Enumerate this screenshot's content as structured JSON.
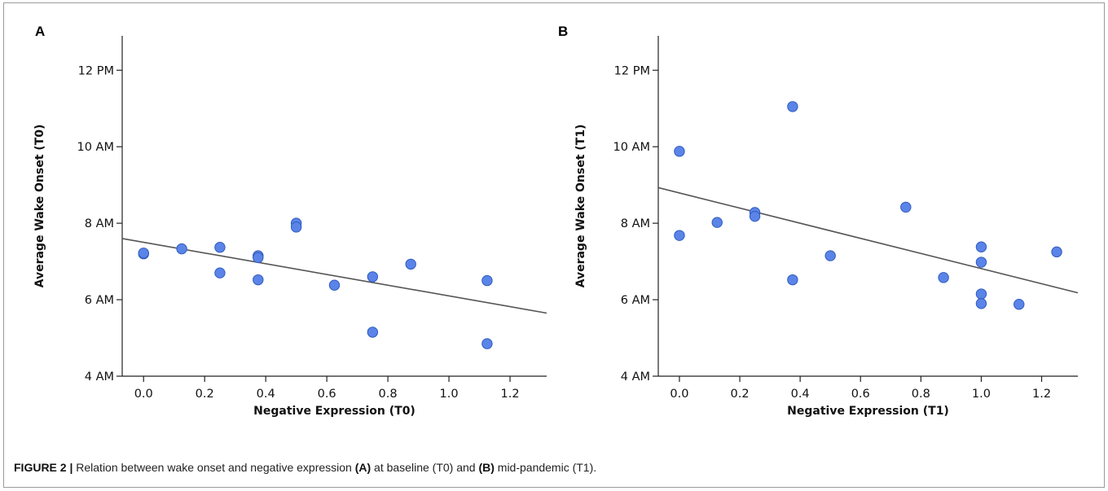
{
  "chart_data": [
    {
      "panel": "A",
      "type": "scatter",
      "xlabel": "Negative Expression (T0)",
      "ylabel": "Average Wake Onset (T0)",
      "xlim": [
        -0.07,
        1.32
      ],
      "ylim_hours": [
        4,
        12.9
      ],
      "x_ticks": [
        0.0,
        0.2,
        0.4,
        0.6,
        0.8,
        1.0,
        1.2
      ],
      "x_tick_labels": [
        "0.0",
        "0.2",
        "0.4",
        "0.6",
        "0.8",
        "1.0",
        "1.2"
      ],
      "y_ticks_hours": [
        4,
        6,
        8,
        10,
        12
      ],
      "y_tick_labels": [
        "4 AM",
        "6 AM",
        "8 AM",
        "10 AM",
        "12 PM"
      ],
      "points": [
        {
          "x": 0.0,
          "y": 7.2
        },
        {
          "x": 0.0,
          "y": 7.22
        },
        {
          "x": 0.125,
          "y": 7.33
        },
        {
          "x": 0.25,
          "y": 7.37
        },
        {
          "x": 0.25,
          "y": 6.7
        },
        {
          "x": 0.375,
          "y": 7.15
        },
        {
          "x": 0.375,
          "y": 7.1
        },
        {
          "x": 0.375,
          "y": 6.52
        },
        {
          "x": 0.5,
          "y": 8.0
        },
        {
          "x": 0.5,
          "y": 7.9
        },
        {
          "x": 0.625,
          "y": 6.38
        },
        {
          "x": 0.75,
          "y": 6.6
        },
        {
          "x": 0.75,
          "y": 5.15
        },
        {
          "x": 0.875,
          "y": 6.93
        },
        {
          "x": 1.125,
          "y": 6.5
        },
        {
          "x": 1.125,
          "y": 4.85
        }
      ],
      "fit_line": {
        "x": [
          -0.07,
          1.32
        ],
        "y": [
          7.6,
          5.65
        ]
      }
    },
    {
      "panel": "B",
      "type": "scatter",
      "xlabel": "Negative Expression (T1)",
      "ylabel": "Average Wake Onset (T1)",
      "xlim": [
        -0.07,
        1.32
      ],
      "ylim_hours": [
        4,
        12.9
      ],
      "x_ticks": [
        0.0,
        0.2,
        0.4,
        0.6,
        0.8,
        1.0,
        1.2
      ],
      "x_tick_labels": [
        "0.0",
        "0.2",
        "0.4",
        "0.6",
        "0.8",
        "1.0",
        "1.2"
      ],
      "y_ticks_hours": [
        4,
        6,
        8,
        10,
        12
      ],
      "y_tick_labels": [
        "4 AM",
        "6 AM",
        "8 AM",
        "10 AM",
        "12 PM"
      ],
      "points": [
        {
          "x": 0.0,
          "y": 9.88
        },
        {
          "x": 0.0,
          "y": 7.68
        },
        {
          "x": 0.125,
          "y": 8.02
        },
        {
          "x": 0.25,
          "y": 8.28
        },
        {
          "x": 0.25,
          "y": 8.18
        },
        {
          "x": 0.375,
          "y": 11.05
        },
        {
          "x": 0.375,
          "y": 6.52
        },
        {
          "x": 0.5,
          "y": 7.15
        },
        {
          "x": 0.75,
          "y": 8.42
        },
        {
          "x": 0.875,
          "y": 6.58
        },
        {
          "x": 1.0,
          "y": 7.38
        },
        {
          "x": 1.0,
          "y": 6.98
        },
        {
          "x": 1.0,
          "y": 6.15
        },
        {
          "x": 1.0,
          "y": 5.9
        },
        {
          "x": 1.125,
          "y": 5.88
        },
        {
          "x": 1.25,
          "y": 7.25
        }
      ],
      "fit_line": {
        "x": [
          -0.07,
          1.32
        ],
        "y": [
          8.93,
          6.18
        ]
      }
    }
  ],
  "caption": {
    "figure_label": "FIGURE 2 |",
    "text_1": " Relation between wake onset and negative expression ",
    "bold_a": "(A)",
    "text_2": " at baseline (T0) and ",
    "bold_b": "(B)",
    "text_3": " mid-pandemic (T1)."
  },
  "colors": {
    "point_fill": "#5b84e8",
    "point_stroke": "#2f5bbf",
    "fit_line": "#555555",
    "axis": "#222222"
  }
}
